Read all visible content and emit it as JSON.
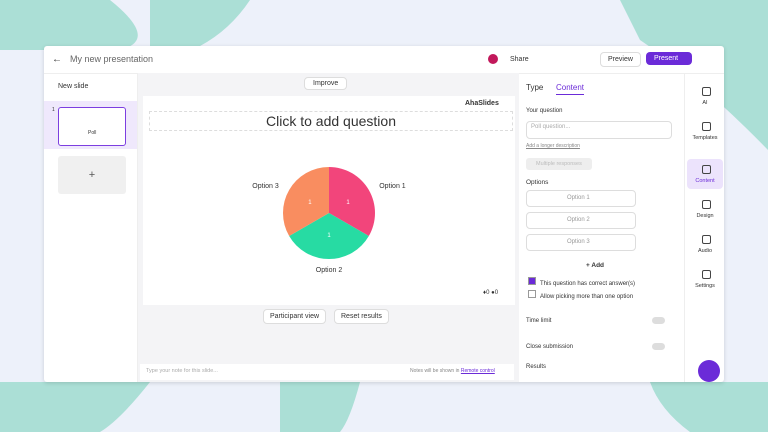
{
  "toolbar": {
    "title": "My new presentation",
    "share": "Share",
    "preview": "Preview",
    "present": "Present"
  },
  "sidebar": {
    "new_slide": "New slide",
    "slide_number": "1",
    "slide_label": "Poll"
  },
  "improve": "Improve",
  "slide": {
    "brand": "AhaSlides",
    "question": "Click to add question",
    "chart": {
      "type": "pie",
      "categories": [
        "Option 1",
        "Option 2",
        "Option 3"
      ],
      "values": [
        1,
        1,
        1
      ],
      "colors": [
        "#f2457b",
        "#27dba3",
        "#f98d60"
      ]
    },
    "reactions": [
      0,
      0
    ]
  },
  "buttons": [
    "Participant view",
    "Reset results"
  ],
  "notes": {
    "placeholder": "Type your note for this slide...",
    "hint": "Notes will be shown in",
    "link": "Remote control"
  },
  "panel": {
    "tabs": [
      "Type",
      "Content"
    ],
    "your_question": "Your question",
    "question_placeholder": "Poll question...",
    "long_desc": "Add a longer description",
    "multiple": "Multiple responses",
    "options_label": "Options",
    "options": [
      "Option 1",
      "Option 2",
      "Option 3"
    ],
    "add": "Add",
    "checks": [
      "This question has correct answer(s)",
      "Allow picking more than one option"
    ],
    "time_limit": "Time limit",
    "close_submission": "Close submission",
    "results": "Results"
  },
  "rail": [
    "AI",
    "Templates",
    "Content",
    "Design",
    "Audio",
    "Settings"
  ]
}
